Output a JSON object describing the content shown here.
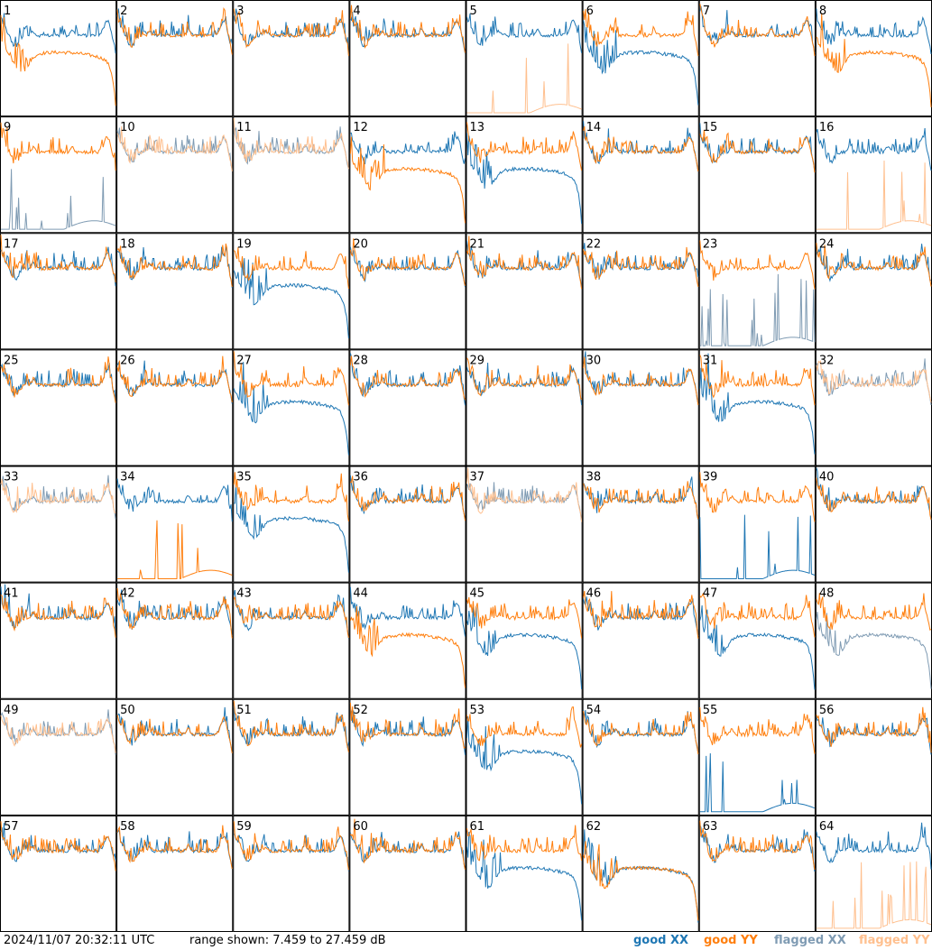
{
  "chart_data": {
    "type": "line",
    "layout": "grid",
    "rows": 8,
    "cols": 8,
    "x_axis": "frequency channel (unlabeled)",
    "y_units": "dB",
    "ylim": [
      7.459,
      27.459
    ],
    "grid": false,
    "legend_placement": "bottom-right",
    "panel_labels": [
      "1",
      "2",
      "3",
      "4",
      "5",
      "6",
      "7",
      "8",
      "9",
      "10",
      "11",
      "12",
      "13",
      "14",
      "15",
      "16",
      "17",
      "18",
      "19",
      "20",
      "21",
      "22",
      "23",
      "24",
      "25",
      "26",
      "27",
      "28",
      "29",
      "30",
      "31",
      "32",
      "33",
      "34",
      "35",
      "36",
      "37",
      "38",
      "39",
      "40",
      "41",
      "42",
      "43",
      "44",
      "45",
      "46",
      "47",
      "48",
      "49",
      "50",
      "51",
      "52",
      "53",
      "54",
      "55",
      "56",
      "57",
      "58",
      "59",
      "60",
      "61",
      "62",
      "63",
      "64"
    ],
    "flagged_xx_panels": [
      9,
      10,
      11,
      23,
      32,
      33,
      37,
      48,
      49
    ],
    "flagged_yy_panels": [
      5,
      10,
      11,
      16,
      32,
      33,
      37,
      49,
      64
    ],
    "low_xx_panels": [
      6,
      13,
      19,
      27,
      31,
      35,
      45,
      47,
      48,
      53,
      55,
      61,
      62
    ],
    "low_yy_panels": [
      1,
      8,
      12,
      44,
      62,
      34
    ],
    "series": [
      {
        "name": "good XX",
        "color": "#1f77b4"
      },
      {
        "name": "good YY",
        "color": "#ff7f0e"
      },
      {
        "name": "flagged XX",
        "color": "#7f9bb3"
      },
      {
        "name": "flagged YY",
        "color": "#ffc08f"
      }
    ]
  },
  "footer": {
    "timestamp": "2024/11/07 20:32:11 UTC",
    "range_text": "range shown: 7.459 to 27.459 dB"
  },
  "legend": {
    "good_xx": "good XX",
    "good_yy": "good YY",
    "flagged_xx": "flagged XX",
    "flagged_yy": "flagged YY"
  },
  "colors": {
    "good_xx": "#1f77b4",
    "good_yy": "#ff7f0e",
    "flagged_xx": "#7f9bb3",
    "flagged_yy": "#ffc08f"
  }
}
